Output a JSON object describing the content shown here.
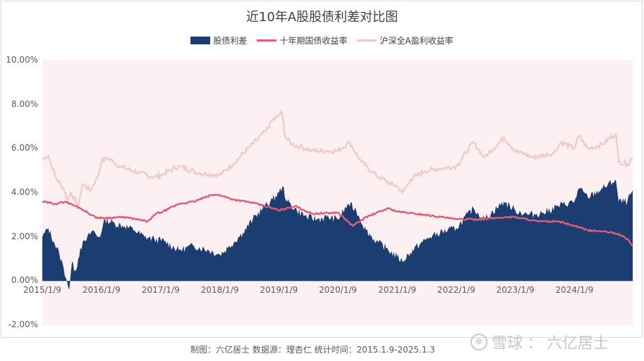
{
  "footer_text": "制图：六亿居士  数据源：理杏仁 统计时间：2015.1.9-2025.1.3",
  "watermark": {
    "brand": "雪球",
    "author": "六亿居士",
    "separator": "：",
    "logo_icon": "snowball-logo-icon"
  },
  "chart_data": {
    "type": "area",
    "title": "近10年A股股债利差对比图",
    "ylabel": "",
    "xlabel": "",
    "ylim": [
      -0.02,
      0.1
    ],
    "y_ticks": [
      "10.00%",
      "8.00%",
      "6.00%",
      "4.00%",
      "2.00%",
      "0.00%",
      "-2.00%"
    ],
    "x_ticks": [
      "2015/1/9",
      "2016/1/9",
      "2017/1/9",
      "2018/1/9",
      "2019/1/9",
      "2020/1/9",
      "2021/1/9",
      "2022/1/9",
      "2023/1/9",
      "2024/1/9"
    ],
    "x_range": [
      "2015-01-09",
      "2025-01-03"
    ],
    "legend_position": "top",
    "colors": {
      "spread": "#1b3d6f",
      "bond": "#e05a7a",
      "earnings": "#f0c8c8",
      "plot_bg": "#fdf0f3"
    },
    "series": [
      {
        "name": "股债利差",
        "style": "area",
        "points": [
          [
            "2015-01-09",
            2.0
          ],
          [
            "2015-02-15",
            2.4
          ],
          [
            "2015-03-20",
            1.8
          ],
          [
            "2015-04-25",
            1.2
          ],
          [
            "2015-05-20",
            0.6
          ],
          [
            "2015-06-10",
            0.0
          ],
          [
            "2015-06-25",
            -0.4
          ],
          [
            "2015-07-10",
            0.8
          ],
          [
            "2015-08-05",
            0.5
          ],
          [
            "2015-09-01",
            1.5
          ],
          [
            "2015-10-01",
            1.8
          ],
          [
            "2015-11-15",
            2.3
          ],
          [
            "2015-12-20",
            2.0
          ],
          [
            "2016-01-09",
            2.2
          ],
          [
            "2016-02-01",
            2.8
          ],
          [
            "2016-04-01",
            2.6
          ],
          [
            "2016-06-01",
            2.5
          ],
          [
            "2016-08-01",
            2.3
          ],
          [
            "2016-10-01",
            2.0
          ],
          [
            "2016-12-01",
            1.9
          ],
          [
            "2017-02-01",
            1.8
          ],
          [
            "2017-05-01",
            1.4
          ],
          [
            "2017-08-01",
            1.6
          ],
          [
            "2017-11-01",
            1.4
          ],
          [
            "2018-01-09",
            1.2
          ],
          [
            "2018-03-01",
            1.5
          ],
          [
            "2018-06-01",
            2.2
          ],
          [
            "2018-08-01",
            2.8
          ],
          [
            "2018-10-01",
            3.3
          ],
          [
            "2018-12-01",
            3.7
          ],
          [
            "2019-01-09",
            4.0
          ],
          [
            "2019-02-01",
            4.3
          ],
          [
            "2019-03-01",
            3.6
          ],
          [
            "2019-05-01",
            3.2
          ],
          [
            "2019-07-01",
            2.9
          ],
          [
            "2019-09-01",
            2.8
          ],
          [
            "2019-11-01",
            2.9
          ],
          [
            "2020-01-09",
            2.8
          ],
          [
            "2020-03-15",
            3.5
          ],
          [
            "2020-05-01",
            3.2
          ],
          [
            "2020-07-01",
            2.3
          ],
          [
            "2020-09-01",
            1.8
          ],
          [
            "2020-11-01",
            1.5
          ],
          [
            "2021-01-09",
            1.1
          ],
          [
            "2021-02-10",
            0.9
          ],
          [
            "2021-04-01",
            1.3
          ],
          [
            "2021-06-01",
            1.7
          ],
          [
            "2021-08-01",
            2.0
          ],
          [
            "2021-10-01",
            2.2
          ],
          [
            "2022-01-09",
            2.4
          ],
          [
            "2022-04-25",
            3.3
          ],
          [
            "2022-07-01",
            2.8
          ],
          [
            "2022-10-31",
            3.6
          ],
          [
            "2023-01-09",
            3.2
          ],
          [
            "2023-04-01",
            3.0
          ],
          [
            "2023-07-01",
            3.1
          ],
          [
            "2023-10-01",
            3.4
          ],
          [
            "2024-01-09",
            3.6
          ],
          [
            "2024-02-05",
            4.2
          ],
          [
            "2024-04-01",
            3.8
          ],
          [
            "2024-07-01",
            4.2
          ],
          [
            "2024-09-20",
            4.6
          ],
          [
            "2024-10-08",
            3.6
          ],
          [
            "2024-12-01",
            3.6
          ],
          [
            "2025-01-03",
            4.1
          ]
        ]
      },
      {
        "name": "十年期国债收益率",
        "style": "line",
        "points": [
          [
            "2015-01-09",
            3.6
          ],
          [
            "2015-04-01",
            3.5
          ],
          [
            "2015-06-01",
            3.6
          ],
          [
            "2015-09-01",
            3.3
          ],
          [
            "2015-12-01",
            2.9
          ],
          [
            "2016-01-09",
            2.85
          ],
          [
            "2016-06-01",
            2.9
          ],
          [
            "2016-10-20",
            2.7
          ],
          [
            "2016-12-20",
            3.1
          ],
          [
            "2017-01-09",
            3.1
          ],
          [
            "2017-05-01",
            3.5
          ],
          [
            "2017-08-01",
            3.6
          ],
          [
            "2017-11-20",
            3.9
          ],
          [
            "2018-01-09",
            3.9
          ],
          [
            "2018-04-01",
            3.7
          ],
          [
            "2018-08-01",
            3.55
          ],
          [
            "2018-12-01",
            3.3
          ],
          [
            "2019-01-09",
            3.2
          ],
          [
            "2019-04-20",
            3.4
          ],
          [
            "2019-08-01",
            3.05
          ],
          [
            "2020-01-09",
            3.1
          ],
          [
            "2020-04-10",
            2.5
          ],
          [
            "2020-07-01",
            2.9
          ],
          [
            "2020-11-15",
            3.3
          ],
          [
            "2021-01-09",
            3.15
          ],
          [
            "2021-07-01",
            3.0
          ],
          [
            "2021-12-01",
            2.85
          ],
          [
            "2022-01-09",
            2.8
          ],
          [
            "2022-06-01",
            2.8
          ],
          [
            "2022-11-20",
            2.9
          ],
          [
            "2023-01-09",
            2.9
          ],
          [
            "2023-06-01",
            2.7
          ],
          [
            "2023-10-01",
            2.7
          ],
          [
            "2024-01-09",
            2.5
          ],
          [
            "2024-04-01",
            2.3
          ],
          [
            "2024-07-01",
            2.25
          ],
          [
            "2024-10-01",
            2.15
          ],
          [
            "2024-12-01",
            1.9
          ],
          [
            "2025-01-03",
            1.6
          ]
        ]
      },
      {
        "name": "沪深全A盈利收益率",
        "style": "line",
        "points": [
          [
            "2015-01-09",
            5.5
          ],
          [
            "2015-02-15",
            5.7
          ],
          [
            "2015-04-01",
            4.7
          ],
          [
            "2015-05-20",
            4.2
          ],
          [
            "2015-06-15",
            3.7
          ],
          [
            "2015-07-05",
            4.0
          ],
          [
            "2015-08-20",
            3.4
          ],
          [
            "2015-09-15",
            4.4
          ],
          [
            "2015-11-01",
            4.1
          ],
          [
            "2015-12-20",
            4.8
          ],
          [
            "2016-01-09",
            5.4
          ],
          [
            "2016-02-15",
            5.6
          ],
          [
            "2016-05-01",
            5.2
          ],
          [
            "2016-09-01",
            4.9
          ],
          [
            "2016-12-01",
            4.7
          ],
          [
            "2017-01-09",
            4.8
          ],
          [
            "2017-05-01",
            5.2
          ],
          [
            "2017-09-01",
            4.9
          ],
          [
            "2018-01-09",
            4.8
          ],
          [
            "2018-04-01",
            5.3
          ],
          [
            "2018-07-01",
            6.0
          ],
          [
            "2018-10-20",
            6.8
          ],
          [
            "2018-12-01",
            7.3
          ],
          [
            "2019-01-09",
            7.5
          ],
          [
            "2019-01-25",
            7.7
          ],
          [
            "2019-02-20",
            6.5
          ],
          [
            "2019-04-01",
            6.2
          ],
          [
            "2019-05-20",
            6.1
          ],
          [
            "2019-08-01",
            5.9
          ],
          [
            "2019-11-01",
            5.9
          ],
          [
            "2020-01-09",
            5.9
          ],
          [
            "2020-03-20",
            6.3
          ],
          [
            "2020-06-01",
            5.4
          ],
          [
            "2020-09-01",
            4.8
          ],
          [
            "2020-12-01",
            4.4
          ],
          [
            "2021-01-09",
            4.3
          ],
          [
            "2021-02-10",
            4.0
          ],
          [
            "2021-04-01",
            4.6
          ],
          [
            "2021-07-01",
            5.0
          ],
          [
            "2021-10-01",
            5.1
          ],
          [
            "2022-01-09",
            5.2
          ],
          [
            "2022-04-25",
            6.3
          ],
          [
            "2022-07-01",
            5.6
          ],
          [
            "2022-10-31",
            6.5
          ],
          [
            "2023-01-09",
            5.9
          ],
          [
            "2023-05-01",
            5.6
          ],
          [
            "2023-09-01",
            5.8
          ],
          [
            "2023-10-20",
            6.3
          ],
          [
            "2024-01-09",
            6.0
          ],
          [
            "2024-02-05",
            6.6
          ],
          [
            "2024-04-01",
            6.0
          ],
          [
            "2024-07-01",
            6.2
          ],
          [
            "2024-09-20",
            6.7
          ],
          [
            "2024-10-08",
            5.4
          ],
          [
            "2024-12-01",
            5.3
          ],
          [
            "2025-01-03",
            5.6
          ]
        ]
      }
    ]
  }
}
